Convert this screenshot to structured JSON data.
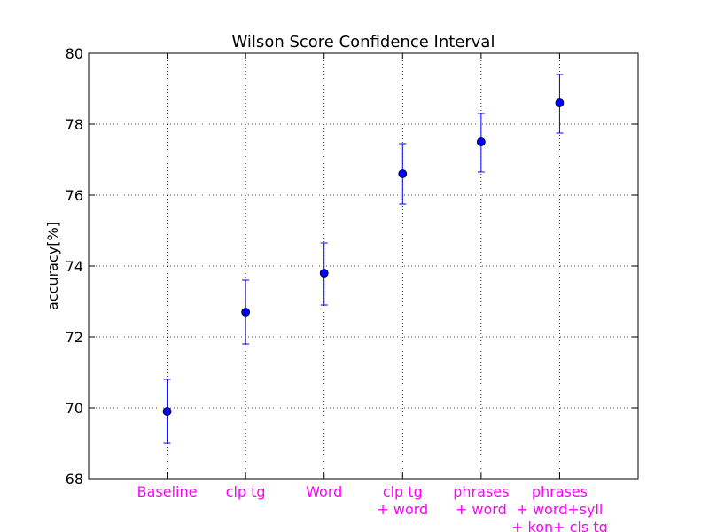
{
  "chart_data": {
    "type": "scatter",
    "title": "Wilson Score Confidence Interval",
    "xlabel": "",
    "ylabel": "accuracy[%]",
    "ylim": [
      68,
      80
    ],
    "yticks": [
      68,
      70,
      72,
      74,
      76,
      78,
      80
    ],
    "grid": true,
    "categories": [
      [
        "Baseline"
      ],
      [
        "clp tg"
      ],
      [
        "Word"
      ],
      [
        "clp tg",
        "+ word"
      ],
      [
        "phrases",
        "+ word"
      ],
      [
        "phrases",
        "+ word+syll",
        "+ kon+ cls tg"
      ]
    ],
    "series": [
      {
        "values": [
          69.9,
          72.7,
          73.8,
          76.6,
          77.5,
          78.6
        ],
        "error_low": [
          69.0,
          71.8,
          72.9,
          75.75,
          76.65,
          77.75
        ],
        "error_high": [
          70.8,
          73.6,
          74.65,
          77.45,
          78.3,
          79.4
        ]
      }
    ],
    "colors": {
      "marker": "#0000ff",
      "error_bar": "#0000ff",
      "tick_label": "#ff00ff",
      "grid": "#000000"
    }
  }
}
